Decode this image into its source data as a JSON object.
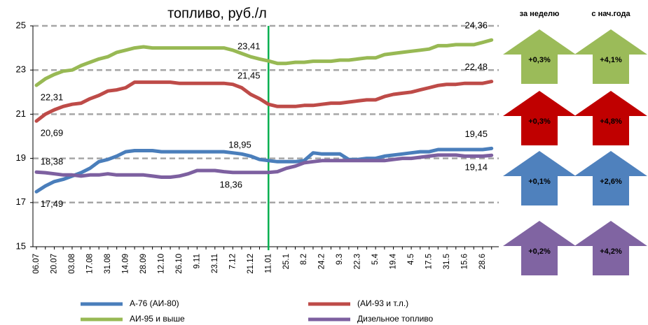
{
  "chart_data": {
    "type": "line",
    "title": "топливо, руб./л",
    "categories": [
      "06.07",
      null,
      "20.07",
      null,
      "03.08",
      null,
      "17.08",
      null,
      "31.08",
      null,
      "14.09",
      null,
      "28.09",
      null,
      "12.10",
      null,
      "26.10",
      null,
      "9.11",
      null,
      "23.11",
      null,
      "7.12",
      null,
      "21.12",
      null,
      "11.01",
      null,
      "25.1",
      null,
      "8.2",
      null,
      "24.2",
      null,
      "9.3",
      null,
      "22.3",
      null,
      "5.4",
      null,
      "19.4",
      null,
      "4.5",
      null,
      "17.5",
      null,
      "31.5",
      null,
      "15.6",
      null,
      "28.6",
      null
    ],
    "series": [
      {
        "name": "А-76 (АИ-80)",
        "color": "#4a7ebb",
        "values": [
          17.49,
          17.75,
          17.95,
          18.05,
          18.2,
          18.35,
          18.55,
          18.85,
          18.95,
          19.1,
          19.3,
          19.35,
          19.35,
          19.35,
          19.3,
          19.3,
          19.3,
          19.3,
          19.3,
          19.3,
          19.3,
          19.3,
          19.25,
          19.2,
          19.1,
          18.95,
          18.9,
          18.85,
          18.85,
          18.85,
          18.9,
          19.25,
          19.2,
          19.2,
          19.2,
          18.95,
          18.95,
          19.0,
          19.0,
          19.1,
          19.15,
          19.2,
          19.25,
          19.3,
          19.3,
          19.4,
          19.4,
          19.4,
          19.4,
          19.4,
          19.4,
          19.45
        ],
        "value_labels": {
          "0": "17,49",
          "25": "18,95",
          "51": "19,45"
        }
      },
      {
        "name": "(АИ-93 и т.л.)",
        "color": "#be4b48",
        "values": [
          20.69,
          21.0,
          21.2,
          21.35,
          21.45,
          21.5,
          21.7,
          21.85,
          22.05,
          22.1,
          22.2,
          22.45,
          22.45,
          22.45,
          22.45,
          22.45,
          22.4,
          22.4,
          22.4,
          22.4,
          22.4,
          22.4,
          22.35,
          22.2,
          21.9,
          21.7,
          21.45,
          21.35,
          21.35,
          21.35,
          21.4,
          21.4,
          21.45,
          21.5,
          21.5,
          21.55,
          21.6,
          21.65,
          21.65,
          21.8,
          21.9,
          21.95,
          22.0,
          22.1,
          22.2,
          22.3,
          22.35,
          22.35,
          22.4,
          22.4,
          22.4,
          22.48
        ],
        "value_labels": {
          "0": "20,69",
          "26": "21,45",
          "51": "22,48"
        }
      },
      {
        "name": "АИ-95 и выше",
        "color": "#98b954",
        "values": [
          22.31,
          22.6,
          22.8,
          22.95,
          23.0,
          23.2,
          23.35,
          23.5,
          23.6,
          23.8,
          23.9,
          24.0,
          24.05,
          24.0,
          24.0,
          24.0,
          24.0,
          24.0,
          24.0,
          24.0,
          24.0,
          24.0,
          23.9,
          23.75,
          23.6,
          23.5,
          23.41,
          23.3,
          23.3,
          23.35,
          23.35,
          23.4,
          23.4,
          23.4,
          23.45,
          23.45,
          23.5,
          23.55,
          23.55,
          23.7,
          23.75,
          23.8,
          23.85,
          23.9,
          23.95,
          24.1,
          24.1,
          24.15,
          24.15,
          24.15,
          24.25,
          24.36
        ],
        "value_labels": {
          "0": "22,31",
          "26": "23,41",
          "51": "24,36"
        }
      },
      {
        "name": "Дизельное топливо",
        "color": "#7d60a0",
        "values": [
          18.38,
          18.35,
          18.3,
          18.25,
          18.25,
          18.2,
          18.25,
          18.25,
          18.3,
          18.25,
          18.25,
          18.25,
          18.25,
          18.2,
          18.15,
          18.15,
          18.2,
          18.3,
          18.45,
          18.45,
          18.45,
          18.4,
          18.36,
          18.36,
          18.36,
          18.36,
          18.36,
          18.4,
          18.55,
          18.65,
          18.8,
          18.85,
          18.9,
          18.9,
          18.9,
          18.9,
          18.9,
          18.9,
          18.9,
          18.9,
          18.95,
          19.0,
          19.0,
          19.05,
          19.1,
          19.15,
          19.15,
          19.15,
          19.1,
          19.1,
          19.1,
          19.14
        ],
        "value_labels": {
          "0": "18,38",
          "24": "18,36",
          "51": "19,14"
        }
      }
    ],
    "ylim": [
      15,
      25
    ],
    "yticks": [
      15,
      17,
      19,
      21,
      23,
      25
    ],
    "grid": true,
    "vertical_line": {
      "category_index": 26,
      "color": "#00b050"
    },
    "panel": {
      "headers": [
        "за неделю",
        "с нач.года"
      ],
      "rows": [
        {
          "color": "#9bbb59",
          "cells": [
            "+0,3%",
            "+4,1%"
          ]
        },
        {
          "color": "#c00000",
          "cells": [
            "+0,3%",
            "+4,8%"
          ]
        },
        {
          "color": "#4f81bd",
          "cells": [
            "+0,1%",
            "+2,6%"
          ]
        },
        {
          "color": "#8064a2",
          "cells": [
            "+0,2%",
            "+4,2%"
          ]
        }
      ]
    }
  }
}
